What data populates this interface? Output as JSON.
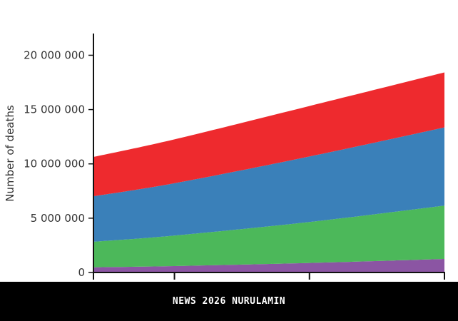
{
  "chart_data": {
    "type": "area",
    "stacked": true,
    "title": "",
    "xlabel": "",
    "ylabel": "Number of deaths",
    "ylim": [
      0,
      22000000
    ],
    "y_ticks": [
      0,
      5000000,
      10000000,
      15000000,
      20000000
    ],
    "y_tick_labels": [
      "0",
      "5 000 000",
      "10 000 000",
      "15 000 000",
      "20 000 000"
    ],
    "x_tick_labels": [
      "",
      "",
      "",
      ""
    ],
    "grid": false,
    "legend": "none",
    "series": [
      {
        "color": "#8b55a3",
        "values": [
          480000,
          590000,
          880000,
          1250000
        ]
      },
      {
        "color": "#4cb85a",
        "values": [
          2350000,
          2810000,
          3770000,
          4910000
        ]
      },
      {
        "color": "#3a80b9",
        "values": [
          4190000,
          4820000,
          6030000,
          7200000
        ]
      },
      {
        "color": "#ee2a2e",
        "values": [
          3620000,
          4040000,
          4650000,
          5060000
        ]
      }
    ]
  },
  "banner": {
    "text": "NEWS 2026 NURULAMIN"
  }
}
